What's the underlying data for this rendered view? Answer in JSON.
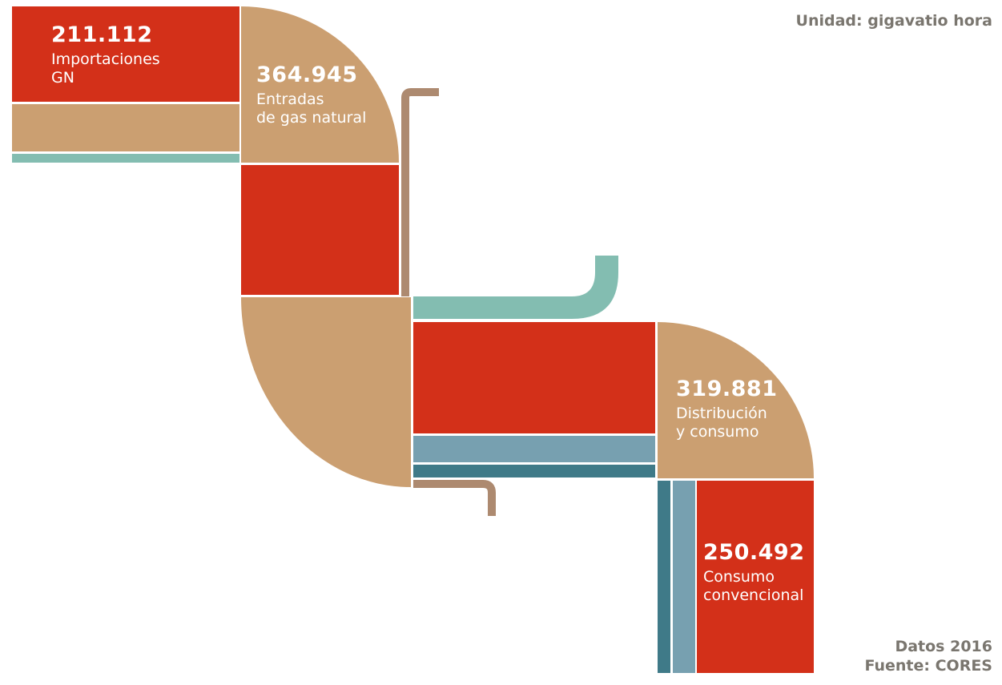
{
  "colors": {
    "gas_natural": "#cb9f71",
    "importaciones": "#d33019",
    "light_teal": "#83bdb1",
    "steel_blue": "#77a0b0",
    "dark_teal": "#3f7a88",
    "brown_pipe": "#ad8a70",
    "background": "#ffffff"
  },
  "unit": "Unidad: gigavatio hora",
  "data_year": "Datos 2016",
  "source": "Fuente: CORES",
  "nodes": {
    "importaciones": {
      "value": "211.112",
      "label_line1": "Importaciones",
      "label_line2": "GN"
    },
    "entradas": {
      "value": "364.945",
      "label_line1": "Entradas",
      "label_line2": "de gas natural"
    },
    "distribucion": {
      "value": "319.881",
      "label_line1": "Distribución",
      "label_line2": "y consumo"
    },
    "consumo": {
      "value": "250.492",
      "label_line1": "Consumo",
      "label_line2": "convencional"
    }
  }
}
